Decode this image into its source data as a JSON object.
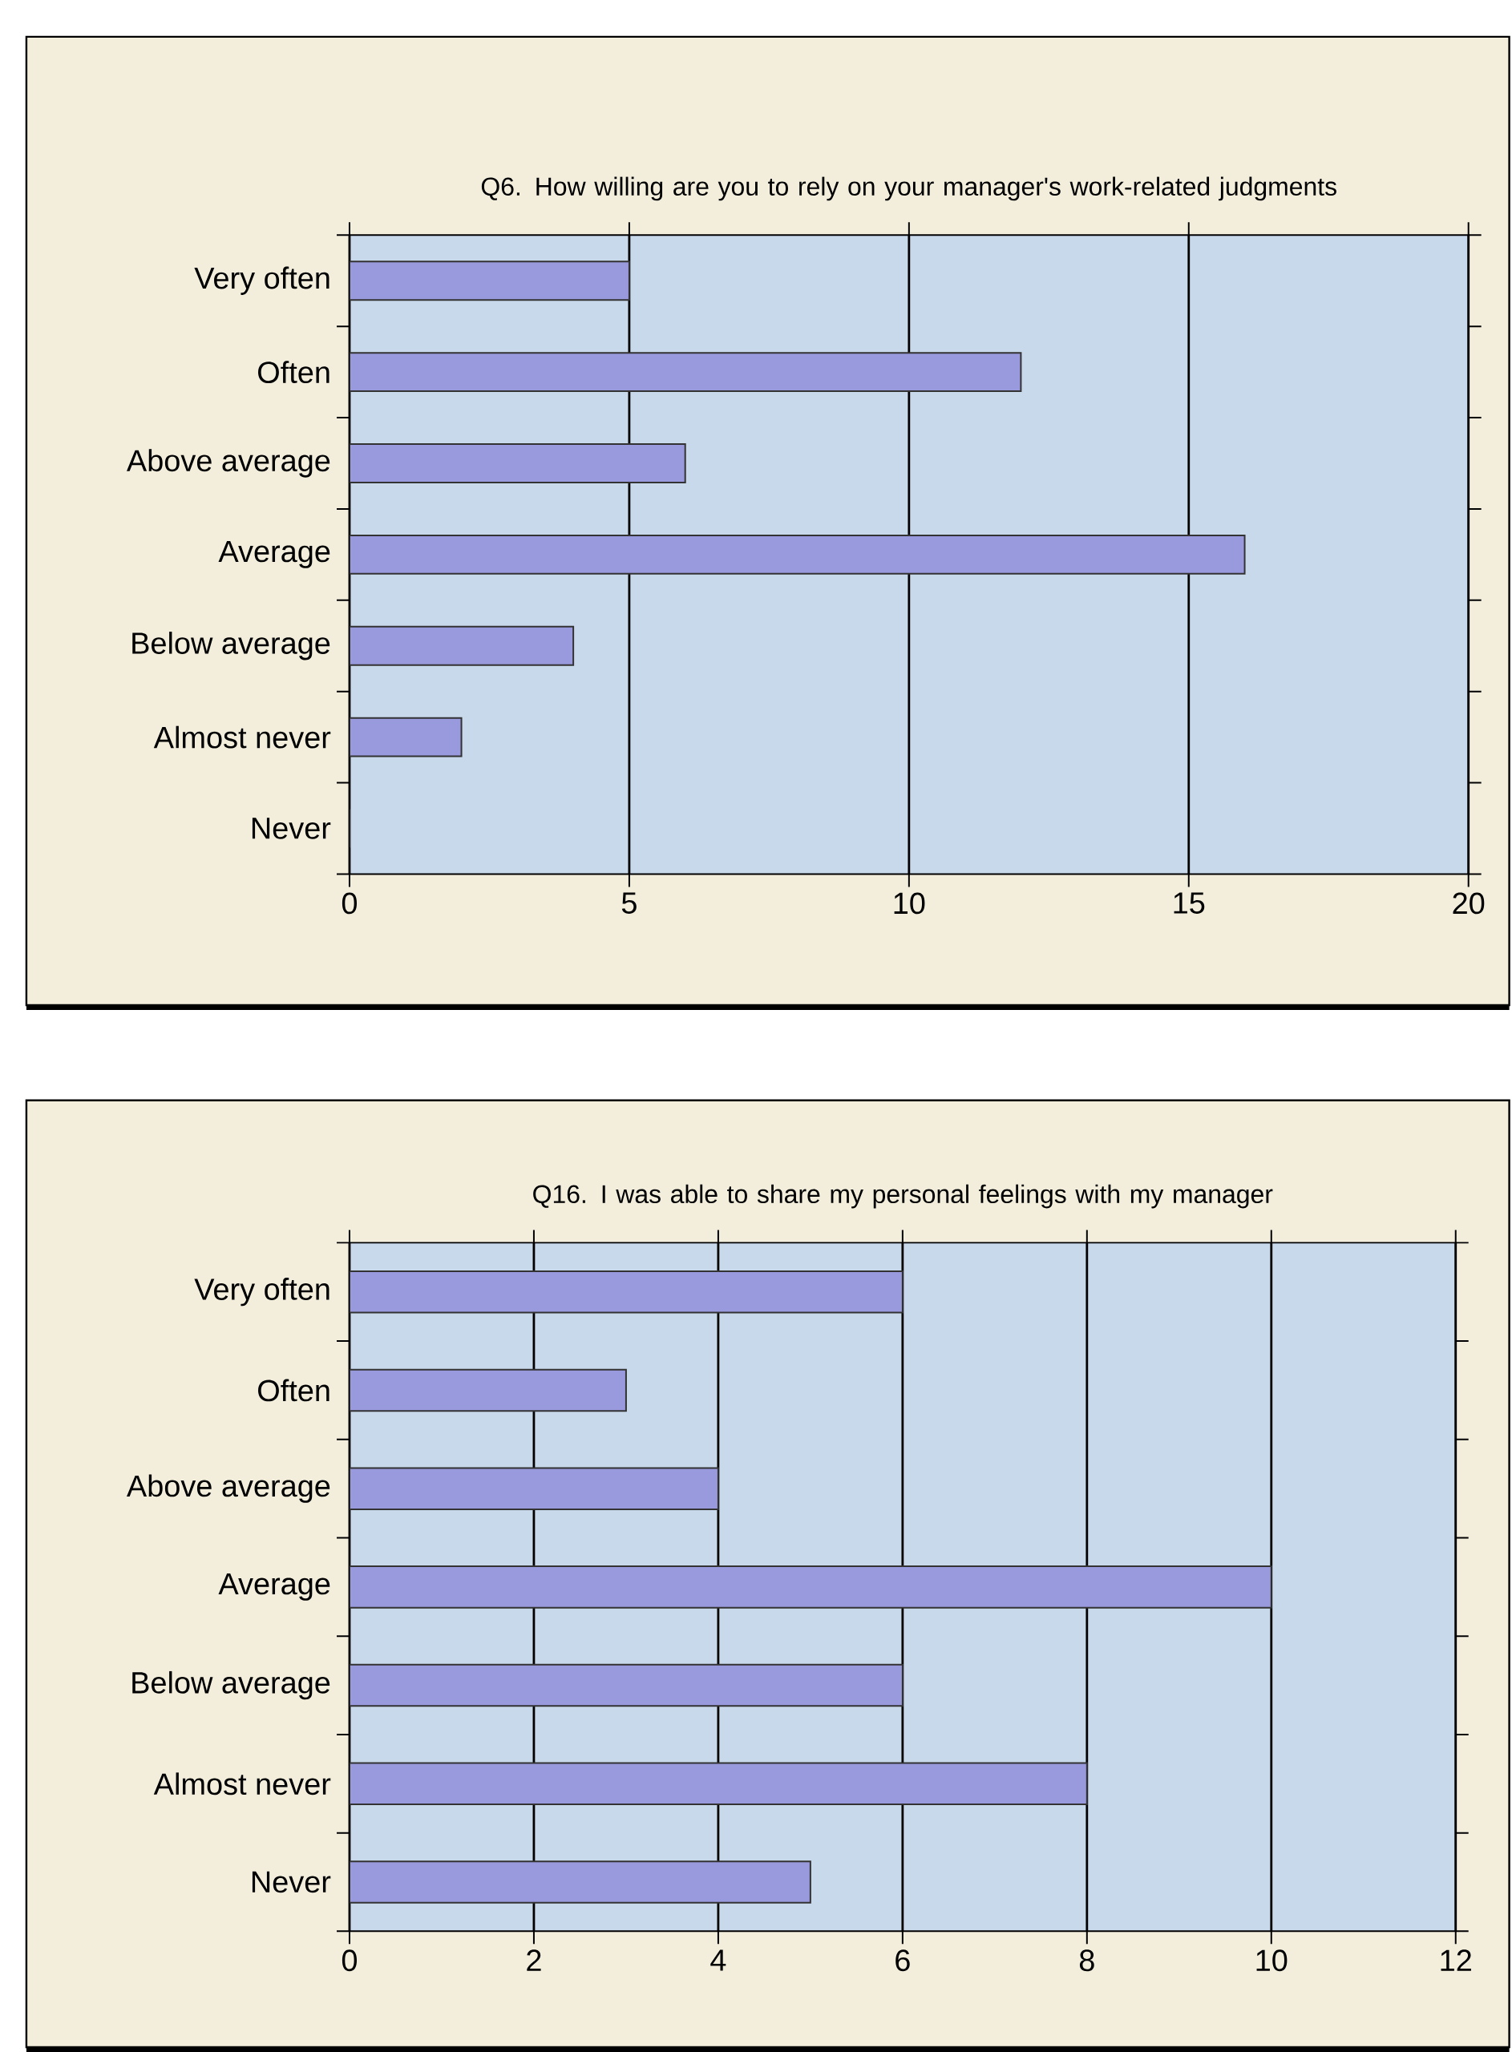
{
  "chart_data": [
    {
      "type": "bar",
      "orientation": "horizontal",
      "title": "Q6. How willing are you to rely on your manager's work-related judgments",
      "categories": [
        "Very often",
        "Often",
        "Above average",
        "Average",
        "Below average",
        "Almost never",
        "Never"
      ],
      "values": [
        5,
        12,
        6,
        16,
        4,
        2,
        0
      ],
      "color": "#9999dd",
      "xlim": [
        0,
        20
      ],
      "xticks": [
        0,
        5,
        10,
        15,
        20
      ],
      "grid": "x"
    },
    {
      "type": "bar",
      "orientation": "horizontal",
      "title": "Q16. I was able to share my personal feelings with my manager",
      "categories": [
        "Very often",
        "Often",
        "Above average",
        "Average",
        "Below average",
        "Almost never",
        "Never"
      ],
      "values": [
        6,
        3,
        4,
        10,
        6,
        8,
        5
      ],
      "color": "#9999dd",
      "xlim": [
        0,
        12
      ],
      "xticks": [
        0,
        2,
        4,
        6,
        8,
        10,
        12
      ],
      "grid": "x"
    }
  ]
}
